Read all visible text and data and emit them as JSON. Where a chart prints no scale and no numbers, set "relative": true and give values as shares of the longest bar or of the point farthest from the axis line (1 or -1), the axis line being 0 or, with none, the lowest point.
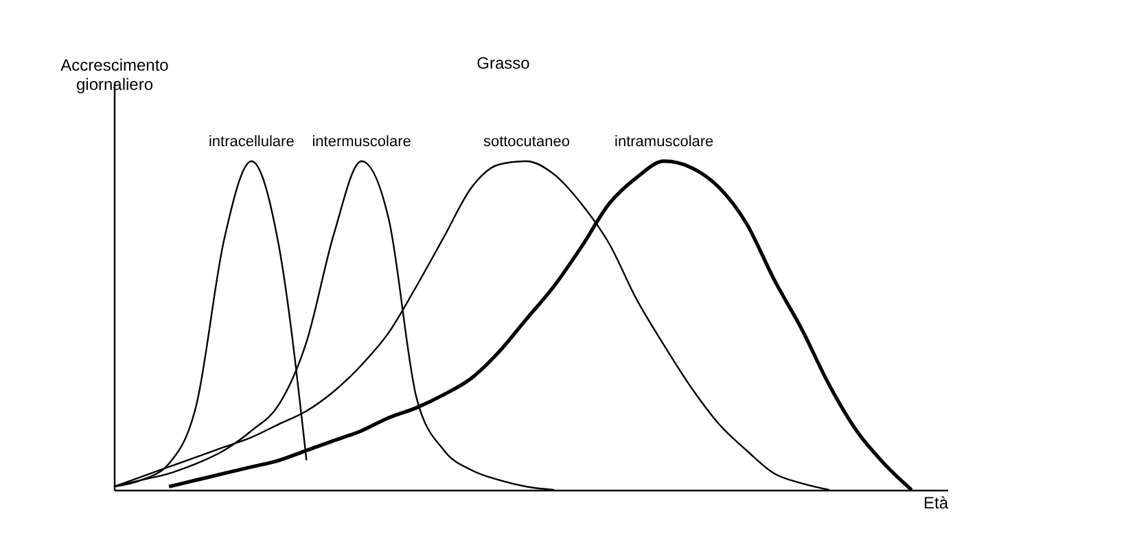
{
  "chart_data": {
    "type": "line",
    "relative": true,
    "title": "Grasso",
    "xlabel": "Età",
    "ylabel": "Accrescimento giornaliero",
    "categories": [
      null,
      null,
      null,
      null,
      null,
      null,
      null,
      null,
      null,
      null,
      null,
      null,
      null,
      null,
      null,
      null,
      null,
      null,
      null,
      null,
      null,
      null,
      null,
      null,
      null,
      null,
      null,
      null,
      null,
      null
    ],
    "series": [
      {
        "name": "intracellulare",
        "color": "#000000",
        "values": [
          0.01,
          0.03,
          0.08,
          0.26,
          0.76,
          1.0,
          0.74,
          0.09,
          null,
          null,
          null,
          null,
          null,
          null,
          null,
          null,
          null,
          null,
          null,
          null,
          null,
          null,
          null,
          null,
          null,
          null,
          null,
          null,
          null,
          null
        ]
      },
      {
        "name": "intermuscolare",
        "color": "#000000",
        "values": [
          0.01,
          0.03,
          0.05,
          0.08,
          0.12,
          0.18,
          0.26,
          0.45,
          0.78,
          1.0,
          0.82,
          0.28,
          0.12,
          0.06,
          0.03,
          0.01,
          0,
          null,
          null,
          null,
          null,
          null,
          null,
          null,
          null,
          null,
          null,
          null,
          null,
          null
        ]
      },
      {
        "name": "sottocutaneo",
        "color": "#000000",
        "values": [
          0.01,
          0.04,
          0.07,
          0.1,
          0.13,
          0.16,
          0.2,
          0.24,
          0.3,
          0.38,
          0.48,
          0.62,
          0.77,
          0.92,
          0.99,
          1.0,
          0.96,
          0.87,
          0.75,
          0.58,
          0.44,
          0.31,
          0.2,
          0.12,
          0.05,
          0.02,
          0,
          null,
          null,
          null
        ]
      },
      {
        "name": "intramuscolare",
        "color": "#000000",
        "values": [
          null,
          null,
          0.01,
          0.03,
          0.05,
          0.07,
          0.09,
          0.12,
          0.15,
          0.18,
          0.22,
          0.25,
          0.29,
          0.34,
          0.42,
          0.52,
          0.62,
          0.74,
          0.87,
          0.95,
          1.0,
          0.98,
          0.92,
          0.81,
          0.64,
          0.49,
          0.32,
          0.18,
          0.08,
          0
        ]
      }
    ],
    "marker": "none",
    "line_style": "solid"
  }
}
